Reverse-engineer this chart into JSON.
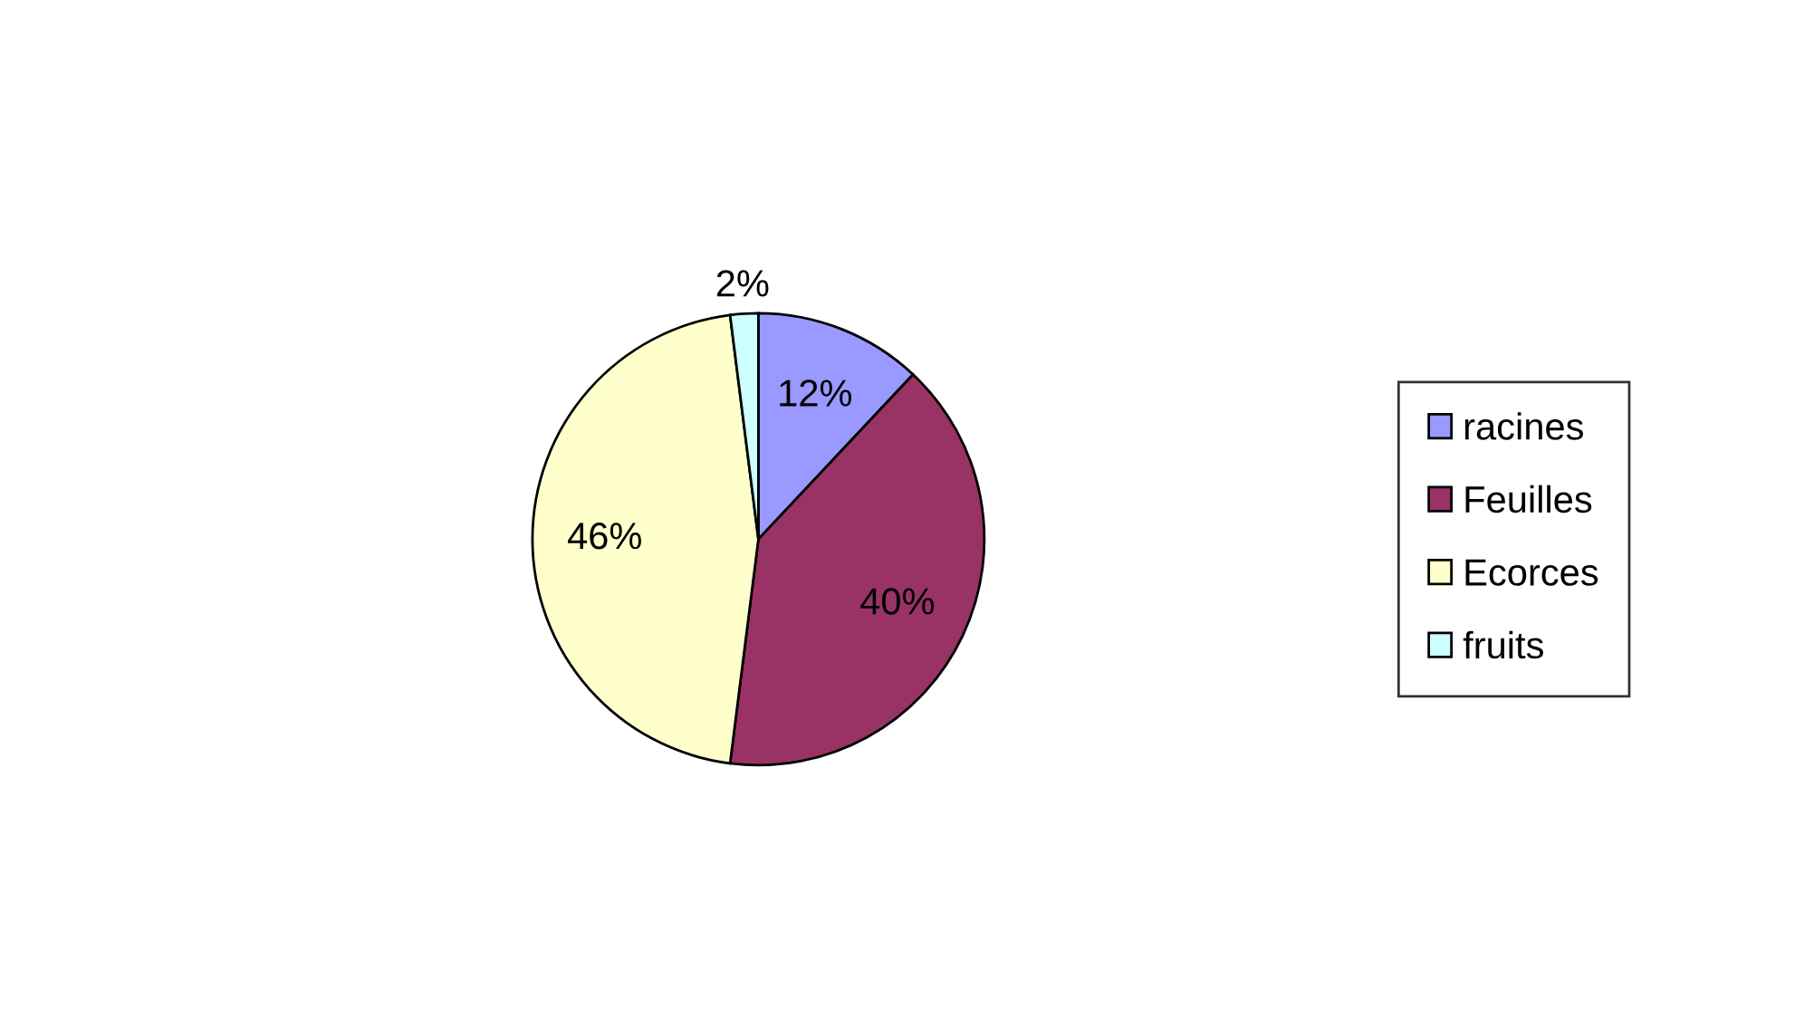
{
  "chart_data": {
    "type": "pie",
    "categories": [
      "racines",
      "Feuilles",
      "Ecorces",
      "fruits"
    ],
    "values": [
      12,
      40,
      46,
      2
    ],
    "value_labels": [
      "12%",
      "40%",
      "46%",
      "2%"
    ],
    "colors": [
      "#9999ff",
      "#993366",
      "#ffffcc",
      "#ccffff"
    ],
    "legend": "right"
  }
}
